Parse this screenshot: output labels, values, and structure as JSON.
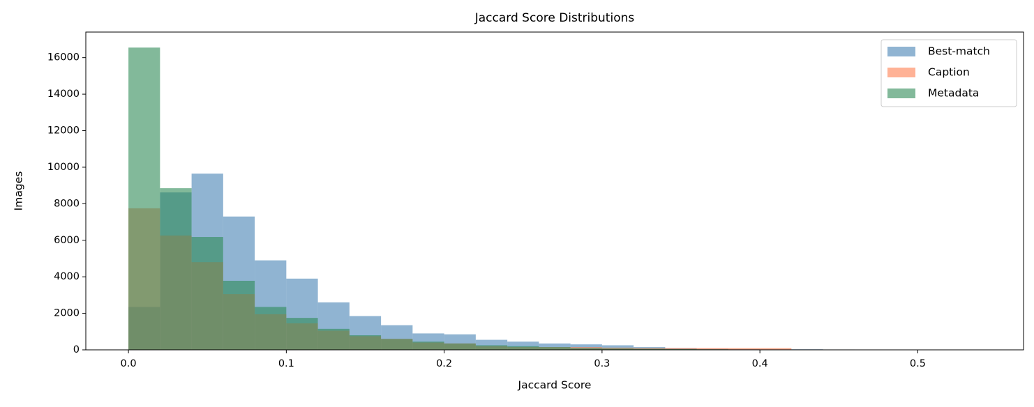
{
  "chart_data": {
    "type": "histogram",
    "title": "Jaccard Score Distributions",
    "x_label": "Jaccard Score",
    "y_label": "Images",
    "bins": [
      0,
      0.02,
      0.04,
      0.06,
      0.08,
      0.1,
      0.12,
      0.14,
      0.16,
      0.18,
      0.2,
      0.22,
      0.24,
      0.26,
      0.28,
      0.3,
      0.32,
      0.34,
      0.36,
      0.38,
      0.4,
      0.42,
      0.44,
      0.46,
      0.48,
      0.5,
      0.52,
      0.54
    ],
    "series": [
      {
        "name": "Best-match",
        "color": "#4682b4",
        "values": [
          2350,
          8620,
          9650,
          7300,
          4900,
          3900,
          2600,
          1850,
          1350,
          900,
          850,
          550,
          450,
          350,
          300,
          250,
          150,
          100,
          60,
          40,
          30,
          30,
          20,
          10,
          5,
          5,
          5
        ]
      },
      {
        "name": "Caption",
        "color": "#ff7f50",
        "values": [
          7750,
          6260,
          4800,
          3050,
          1950,
          1450,
          1050,
          750,
          600,
          400,
          350,
          200,
          150,
          150,
          150,
          120,
          100,
          100,
          100,
          100,
          100,
          20,
          10,
          0,
          0,
          0,
          0
        ]
      },
      {
        "name": "Metadata",
        "color": "#2e8b57",
        "values": [
          16550,
          8850,
          6180,
          3780,
          2350,
          1750,
          1150,
          800,
          600,
          450,
          350,
          250,
          200,
          150,
          100,
          80,
          60,
          40,
          30,
          20,
          10,
          10,
          5,
          0,
          0,
          0,
          0
        ]
      }
    ],
    "opacity": 0.6,
    "xlim": [
      -0.027,
      0.567
    ],
    "ylim": [
      0,
      17400
    ],
    "xticks": [
      {
        "value": 0,
        "label": "0.0"
      },
      0.1,
      0.2,
      0.3,
      0.4,
      0.5
    ],
    "yticks": [
      0,
      2000,
      4000,
      6000,
      8000,
      10000,
      12000,
      14000,
      16000
    ],
    "legend": "upper right"
  }
}
